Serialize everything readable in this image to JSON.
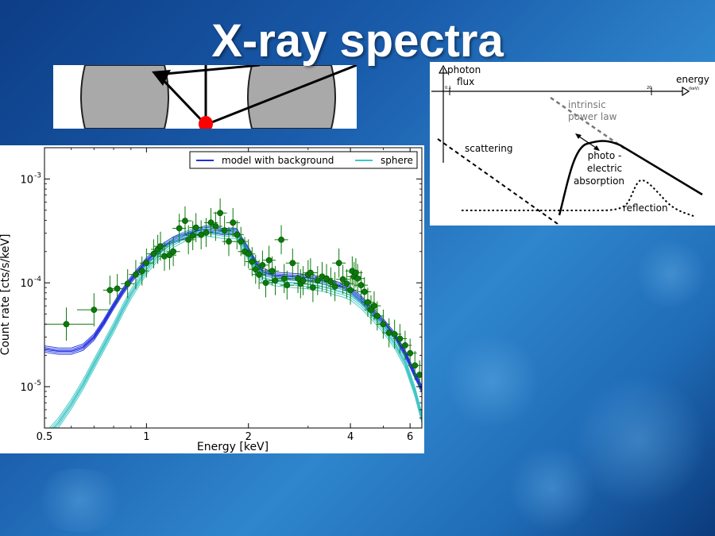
{
  "slide": {
    "title": "X-ray spectra"
  },
  "schematic": {
    "y_axis_label_line1": "photon",
    "y_axis_label_line2": "flux",
    "x_axis_label": "energy",
    "x_axis_unit": "(keV)",
    "tick_low": "0.1",
    "tick_high": "20",
    "intrinsic_line1": "intrinsic",
    "intrinsic_line2": "power law",
    "scattering": "scattering",
    "photo_line1": "photo -",
    "photo_line2": "electric",
    "photo_line3": "absorption",
    "reflection": "reflection"
  },
  "chart_data": {
    "type": "scatter",
    "xlabel": "Energy [keV]",
    "ylabel": "Count rate [cts/s/keV]",
    "x_scale": "log",
    "y_scale": "log",
    "xlim": [
      0.5,
      6.5
    ],
    "ylim": [
      4e-06,
      0.002
    ],
    "x_ticks": [
      {
        "value": 0.5,
        "label": "0.5"
      },
      {
        "value": 1,
        "label": "1"
      },
      {
        "value": 2,
        "label": "2"
      },
      {
        "value": 4,
        "label": "4"
      },
      {
        "value": 6,
        "label": "6"
      }
    ],
    "y_ticks": [
      {
        "value": 1e-05,
        "base": "10",
        "exp": "-5"
      },
      {
        "value": 0.0001,
        "base": "10",
        "exp": "-4"
      },
      {
        "value": 0.001,
        "base": "10",
        "exp": "-3"
      }
    ],
    "legend_position": "top-right",
    "series": [
      {
        "name": "model with background",
        "kind": "line",
        "color": "#1f2ee0",
        "x": [
          0.5,
          0.55,
          0.6,
          0.65,
          0.7,
          0.75,
          0.8,
          0.85,
          0.9,
          1.0,
          1.1,
          1.2,
          1.3,
          1.4,
          1.5,
          1.6,
          1.7,
          1.8,
          1.85,
          1.9,
          2.0,
          2.1,
          2.2,
          2.4,
          2.6,
          2.8,
          3.0,
          3.2,
          3.4,
          3.6,
          3.8,
          4.0,
          4.3,
          4.6,
          5.0,
          5.4,
          5.8,
          6.2,
          6.5
        ],
        "y": [
          2.3e-05,
          2.2e-05,
          2.2e-05,
          2.4e-05,
          3e-05,
          4.2e-05,
          6e-05,
          8.2e-05,
          0.000107,
          0.000162,
          0.000215,
          0.000258,
          0.00029,
          0.000315,
          0.00033,
          0.00032,
          0.00031,
          0.000315,
          0.00031,
          0.000265,
          0.000205,
          0.000155,
          0.000128,
          0.000118,
          0.000116,
          0.000114,
          0.000112,
          0.000108,
          0.000103,
          9.7e-05,
          9.2e-05,
          8.5e-05,
          7e-05,
          5.5e-05,
          4.2e-05,
          3.1e-05,
          2.1e-05,
          1.3e-05,
          9.5e-06
        ]
      },
      {
        "name": "sphere",
        "kind": "line",
        "color": "#3ec6c6",
        "x": [
          0.5,
          0.55,
          0.6,
          0.65,
          0.7,
          0.75,
          0.8,
          0.85,
          0.9,
          1.0,
          1.1,
          1.2,
          1.3,
          1.4,
          1.5,
          1.6,
          1.7,
          1.8,
          1.85,
          1.9,
          2.0,
          2.1,
          2.2,
          2.4,
          2.6,
          2.8,
          3.0,
          3.2,
          3.4,
          3.6,
          3.8,
          4.0,
          4.3,
          4.6,
          5.0,
          5.4,
          5.8,
          6.2,
          6.5
        ],
        "y": [
          3.2e-06,
          4.5e-06,
          6.8e-06,
          1.05e-05,
          1.65e-05,
          2.5e-05,
          3.7e-05,
          5.5e-05,
          7.8e-05,
          0.000135,
          0.000195,
          0.000243,
          0.00028,
          0.000305,
          0.000315,
          0.000305,
          0.000295,
          0.000298,
          0.000292,
          0.000245,
          0.000185,
          0.000135,
          0.000112,
          0.000104,
          0.000101,
          9.9e-05,
          9.7e-05,
          9.4e-05,
          9e-05,
          8.5e-05,
          8.1e-05,
          7.6e-05,
          6.3e-05,
          5e-05,
          3.7e-05,
          2.6e-05,
          1.7e-05,
          9e-06,
          5e-06
        ]
      },
      {
        "name": "data",
        "kind": "points",
        "color": "#0b7a0b",
        "x": [
          0.58,
          0.7,
          0.78,
          0.82,
          0.88,
          0.93,
          0.97,
          1.0,
          1.05,
          1.08,
          1.1,
          1.13,
          1.17,
          1.2,
          1.25,
          1.3,
          1.33,
          1.37,
          1.4,
          1.45,
          1.5,
          1.55,
          1.6,
          1.65,
          1.7,
          1.75,
          1.8,
          1.85,
          1.9,
          1.95,
          2.0,
          2.05,
          2.1,
          2.15,
          2.2,
          2.25,
          2.3,
          2.35,
          2.4,
          2.5,
          2.55,
          2.6,
          2.7,
          2.8,
          2.85,
          2.9,
          3.0,
          3.05,
          3.1,
          3.2,
          3.3,
          3.4,
          3.5,
          3.6,
          3.7,
          3.8,
          3.9,
          4.0,
          4.05,
          4.1,
          4.15,
          4.2,
          4.3,
          4.4,
          4.5,
          4.6,
          4.7,
          4.8,
          5.0,
          5.2,
          5.4,
          5.6,
          5.8,
          6.0,
          6.2,
          6.4
        ],
        "y": [
          4e-05,
          5.5e-05,
          8.5e-05,
          8.8e-05,
          9.8e-05,
          0.00012,
          0.00013,
          0.000155,
          0.00019,
          0.00021,
          0.000225,
          0.00018,
          0.000185,
          0.0002,
          0.000335,
          0.000395,
          0.00026,
          0.000285,
          0.00034,
          0.00029,
          0.000305,
          0.00038,
          0.00035,
          0.00047,
          0.00032,
          0.00025,
          0.00038,
          0.00029,
          0.00025,
          0.0002,
          0.00019,
          0.00016,
          0.000135,
          0.00012,
          0.000148,
          0.0001,
          0.000165,
          0.00013,
          0.000105,
          0.00026,
          0.00011,
          9.5e-05,
          0.000155,
          0.00011,
          9.8e-05,
          0.000105,
          0.00012,
          0.000125,
          9e-05,
          0.000105,
          0.000115,
          0.00011,
          0.000102,
          9.2e-05,
          0.000155,
          0.000108,
          9.8e-05,
          8.5e-05,
          0.00013,
          0.000115,
          0.000125,
          0.00011,
          9.5e-05,
          8.2e-05,
          6.5e-05,
          5.5e-05,
          6e-05,
          4.8e-05,
          4e-05,
          3.3e-05,
          3.2e-05,
          2.9e-05,
          2.5e-05,
          2.1e-05,
          1.6e-05,
          1.3e-05
        ]
      }
    ]
  }
}
